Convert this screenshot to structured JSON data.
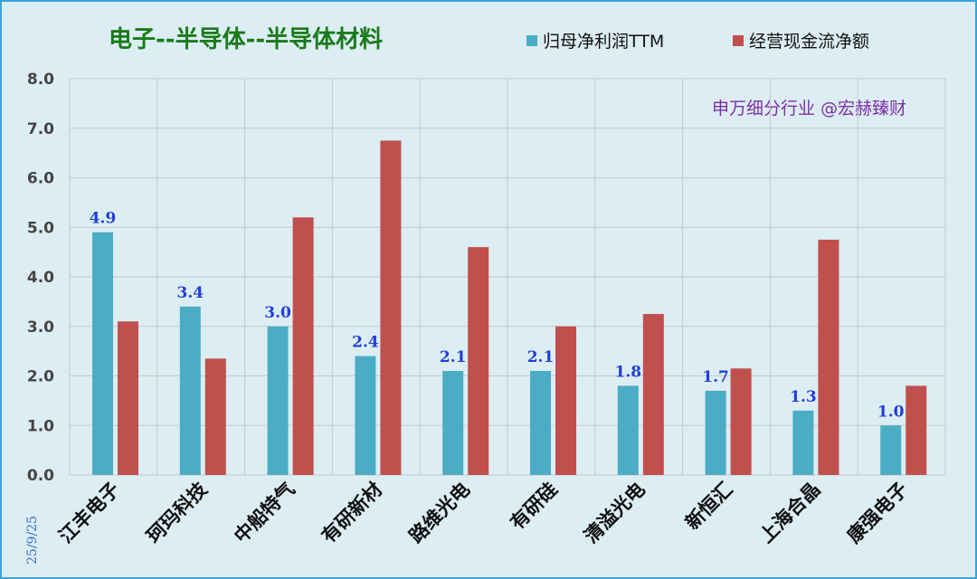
{
  "chart_data": {
    "type": "bar",
    "title": "电子--半导体--半导体材料",
    "annotation": "申万细分行业 @宏赫臻财",
    "date": "25/9/25",
    "categories": [
      "江丰电子",
      "珂玛科技",
      "中船特气",
      "有研新材",
      "路维光电",
      "有研硅",
      "清溢光电",
      "新恒汇",
      "上海合晶",
      "康强电子"
    ],
    "series": [
      {
        "name": "归母净利润TTM",
        "color": "#4bacc6",
        "values": [
          4.9,
          3.4,
          3.0,
          2.4,
          2.1,
          2.1,
          1.8,
          1.7,
          1.3,
          1.0
        ],
        "value_labels": [
          "4.9",
          "3.4",
          "3.0",
          "2.4",
          "2.1",
          "2.1",
          "1.8",
          "1.7",
          "1.3",
          "1.0"
        ]
      },
      {
        "name": "经营现金流净额",
        "color": "#c0504d",
        "values": [
          3.1,
          2.35,
          5.2,
          6.75,
          4.6,
          3.0,
          3.25,
          2.15,
          4.75,
          1.8
        ]
      }
    ],
    "ylim": [
      0,
      8
    ],
    "yticks": [
      "0.0",
      "1.0",
      "2.0",
      "3.0",
      "4.0",
      "5.0",
      "6.0",
      "7.0",
      "8.0"
    ],
    "grid": true,
    "legend_position": "top-right"
  }
}
